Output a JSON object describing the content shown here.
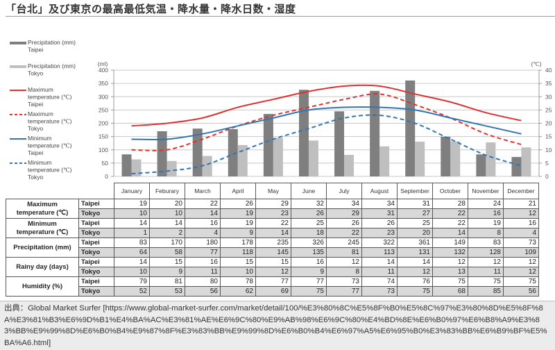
{
  "title": "「台北」及び東京の最高最低気温・降水量・降水日数・湿度",
  "chart_data": {
    "type": "bar+line",
    "title": "「台北」及び東京の最高最低気温・降水量・降水日数・湿度",
    "categories": [
      "January",
      "Feburary",
      "March",
      "April",
      "May",
      "June",
      "July",
      "August",
      "September",
      "October",
      "November",
      "December"
    ],
    "left_axis": {
      "label": "(ml)",
      "range": [
        0,
        400
      ],
      "ticks": [
        0,
        50,
        100,
        150,
        200,
        250,
        300,
        350,
        400
      ]
    },
    "right_axis": {
      "label": "(℃)",
      "range": [
        0,
        40
      ],
      "ticks": [
        0,
        5,
        10,
        15,
        20,
        25,
        30,
        35,
        40
      ]
    },
    "grid": true,
    "legend_position": "left",
    "series": [
      {
        "name": "Precipitation (mm) Taipei",
        "type": "bar",
        "axis": "left",
        "color": "#7f7f7f",
        "values": [
          83,
          170,
          180,
          178,
          235,
          326,
          245,
          322,
          361,
          149,
          83,
          73
        ]
      },
      {
        "name": "Precipitation (mm) Tokyo",
        "type": "bar",
        "axis": "left",
        "color": "#bfbfbf",
        "values": [
          64,
          58,
          77,
          118,
          145,
          135,
          81,
          113,
          131,
          132,
          128,
          109
        ]
      },
      {
        "name": "Maximum temperature (℃) Taipei",
        "type": "line",
        "style": "solid",
        "axis": "right",
        "color": "#e03030",
        "values": [
          19,
          20,
          22,
          26,
          29,
          32,
          34,
          34,
          31,
          28,
          24,
          21
        ]
      },
      {
        "name": "Maximum temperature (℃) Tokyo",
        "type": "line",
        "style": "dashed",
        "axis": "right",
        "color": "#e03030",
        "values": [
          10,
          10,
          14,
          19,
          23,
          26,
          29,
          31,
          27,
          22,
          16,
          12
        ]
      },
      {
        "name": "Minimum temperature (℃) Taipei",
        "type": "line",
        "style": "solid",
        "axis": "right",
        "color": "#2e75b6",
        "values": [
          14,
          14,
          16,
          19,
          22,
          25,
          26,
          26,
          25,
          22,
          19,
          16
        ]
      },
      {
        "name": "Minimum temperature (℃) Tokyo",
        "type": "line",
        "style": "dashed",
        "axis": "right",
        "color": "#2e75b6",
        "values": [
          1,
          2,
          4,
          9,
          14,
          18,
          22,
          23,
          20,
          14,
          8,
          4
        ]
      }
    ]
  },
  "legend": [
    {
      "lines": [
        "Precipitation (mm)",
        "Taipei"
      ],
      "kind": "bar",
      "color": "#7f7f7f"
    },
    {
      "lines": [
        "Precipitation (mm)",
        "Tokyo"
      ],
      "kind": "bar",
      "color": "#bfbfbf"
    },
    {
      "lines": [
        "Maximum",
        "temperature (℃)",
        "Taipei"
      ],
      "kind": "solid",
      "color": "#e03030"
    },
    {
      "lines": [
        "Maximum",
        "temperature (℃)",
        "Tokyo"
      ],
      "kind": "dashed",
      "color": "#e03030"
    },
    {
      "lines": [
        "Minimum",
        "temperature (℃)",
        "Taipei"
      ],
      "kind": "solid",
      "color": "#2e75b6"
    },
    {
      "lines": [
        "Minimum",
        "temperature (℃)",
        "Tokyo"
      ],
      "kind": "dashed",
      "color": "#2e75b6"
    }
  ],
  "table": {
    "months": [
      "January",
      "Feburary",
      "March",
      "April",
      "May",
      "June",
      "July",
      "August",
      "September",
      "October",
      "November",
      "December"
    ],
    "groups": [
      {
        "metric": [
          "Maximum",
          "temperature (℃)"
        ],
        "rows": [
          {
            "city": "Taipei",
            "values": [
              19,
              20,
              22,
              26,
              29,
              32,
              34,
              34,
              31,
              28,
              24,
              21
            ]
          },
          {
            "city": "Tokyo",
            "values": [
              10,
              10,
              14,
              19,
              23,
              26,
              29,
              31,
              27,
              22,
              16,
              12
            ]
          }
        ]
      },
      {
        "metric": [
          "Minimum",
          "temperature (℃)"
        ],
        "rows": [
          {
            "city": "Taipei",
            "values": [
              14,
              14,
              16,
              19,
              22,
              25,
              26,
              26,
              25,
              22,
              19,
              16
            ]
          },
          {
            "city": "Tokyo",
            "values": [
              1,
              2,
              4,
              9,
              14,
              18,
              22,
              23,
              20,
              14,
              8,
              4
            ]
          }
        ]
      },
      {
        "metric": [
          "Precipitation (mm)"
        ],
        "rows": [
          {
            "city": "Taipei",
            "values": [
              83,
              170,
              180,
              178,
              235,
              326,
              245,
              322,
              361,
              149,
              83,
              73
            ]
          },
          {
            "city": "Tokyo",
            "values": [
              64,
              58,
              77,
              118,
              145,
              135,
              81,
              113,
              131,
              132,
              128,
              109
            ]
          }
        ]
      },
      {
        "metric": [
          "Rainy day (days)"
        ],
        "rows": [
          {
            "city": "Taipei",
            "values": [
              14,
              15,
              16,
              15,
              15,
              16,
              12,
              14,
              14,
              12,
              12,
              12
            ]
          },
          {
            "city": "Tokyo",
            "values": [
              10,
              9,
              11,
              10,
              12,
              9,
              8,
              11,
              12,
              13,
              11,
              12
            ]
          }
        ]
      },
      {
        "metric": [
          "Humidity (%)"
        ],
        "rows": [
          {
            "city": "Taipei",
            "values": [
              79,
              81,
              80,
              78,
              77,
              77,
              73,
              74,
              76,
              75,
              75,
              75
            ]
          },
          {
            "city": "Tokyo",
            "values": [
              52,
              53,
              56,
              62,
              69,
              75,
              77,
              73,
              75,
              68,
              85,
              56
            ]
          }
        ]
      }
    ]
  },
  "source": {
    "text": "出典：Global Market Surfer [https://www.global-market-surfer.com/market/detail/100/%E3%80%8C%E5%8F%B0%E5%8C%97%E3%80%8D%E5%8F%8A%E3%81%B3%E6%9D%B1%E4%BA%AC%E3%81%AE%E6%9C%80%E9%AB%98%E6%9C%80%E4%BD%8E%E6%B0%97%E6%B8%A9%E3%83%BB%E9%99%8D%E6%B0%B4%E9%87%8F%E3%83%BB%E9%99%8D%E6%B0%B4%E6%97%A5%E6%95%B0%E3%83%BB%E6%B9%BF%E5%BA%A6.html]"
  }
}
